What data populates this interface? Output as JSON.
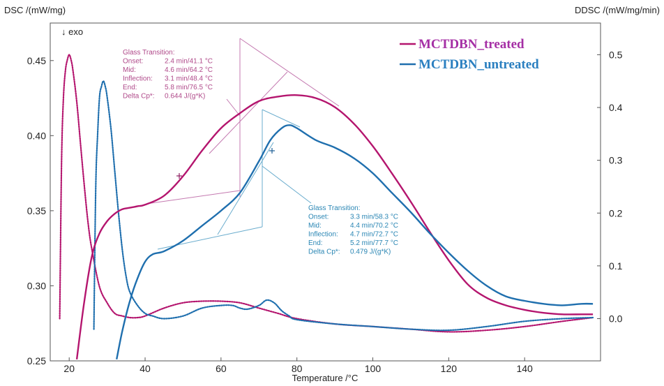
{
  "chart_data": {
    "type": "line",
    "xlabel": "Temperature /°C",
    "ylabel_left": "DSC /(mW/mg)",
    "ylabel_right": "DDSC /(mW/mg/min)",
    "exo_label": "↓ exo",
    "xlim": [
      15,
      160
    ],
    "ylim_left": [
      0.25,
      0.475
    ],
    "ylim_right": [
      -0.08,
      0.56
    ],
    "x_ticks": [
      "20",
      "40",
      "60",
      "80",
      "100",
      "120",
      "140"
    ],
    "y_ticks_left": [
      "0.25",
      "0.30",
      "0.35",
      "0.40",
      "0.45"
    ],
    "y_ticks_right": [
      "0.0",
      "0.1",
      "0.2",
      "0.3",
      "0.4",
      "0.5"
    ],
    "legend": {
      "placement": "top-right",
      "items": [
        {
          "name": "MCTDBN_treated",
          "color": "#b4156e",
          "text_color": "#a52fa5"
        },
        {
          "name": "MCTDBN_untreated",
          "color": "#1f6fae",
          "text_color": "#2a7fc0"
        }
      ]
    },
    "series": [
      {
        "name": "MCTDBN_treated",
        "kind": "DSC",
        "axis": "left",
        "color": "#b4156e",
        "x": [
          22,
          24,
          26,
          28,
          30,
          32,
          34,
          36,
          38,
          40,
          45,
          50,
          55,
          60,
          65,
          70,
          75,
          80,
          85,
          90,
          95,
          100,
          105,
          110,
          115,
          120,
          125,
          130,
          135,
          140,
          145,
          150,
          155,
          158
        ],
        "y": [
          0.251,
          0.29,
          0.32,
          0.335,
          0.343,
          0.348,
          0.351,
          0.352,
          0.353,
          0.354,
          0.36,
          0.373,
          0.39,
          0.405,
          0.415,
          0.423,
          0.426,
          0.427,
          0.425,
          0.419,
          0.408,
          0.393,
          0.375,
          0.356,
          0.336,
          0.317,
          0.301,
          0.292,
          0.287,
          0.284,
          0.282,
          0.281,
          0.281,
          0.281
        ]
      },
      {
        "name": "MCTDBN_untreated",
        "kind": "DSC",
        "axis": "left",
        "color": "#1f6fae",
        "x": [
          32.5,
          34,
          36,
          38,
          40,
          42,
          45,
          50,
          55,
          60,
          65,
          70,
          73,
          76,
          78,
          80,
          85,
          90,
          95,
          100,
          105,
          110,
          115,
          120,
          125,
          130,
          135,
          140,
          145,
          150,
          155,
          158
        ],
        "y": [
          0.251,
          0.27,
          0.29,
          0.305,
          0.316,
          0.321,
          0.323,
          0.33,
          0.34,
          0.35,
          0.362,
          0.383,
          0.397,
          0.405,
          0.407,
          0.405,
          0.397,
          0.392,
          0.385,
          0.375,
          0.362,
          0.349,
          0.335,
          0.322,
          0.31,
          0.3,
          0.293,
          0.29,
          0.288,
          0.287,
          0.288,
          0.288
        ]
      },
      {
        "name": "MCTDBN_treated",
        "kind": "DDSC",
        "axis": "right",
        "color": "#b4156e",
        "dotted": true,
        "x": [
          17.5,
          18,
          18.5,
          19,
          19.5,
          20,
          20.5,
          21,
          22,
          23,
          24,
          25,
          26,
          28,
          30,
          32,
          34,
          36,
          38,
          40,
          45,
          50,
          55,
          60,
          65,
          70,
          75,
          80,
          90,
          100,
          110,
          120,
          130,
          140,
          150,
          158
        ],
        "y": [
          0.0,
          0.3,
          0.42,
          0.47,
          0.49,
          0.5,
          0.49,
          0.47,
          0.41,
          0.33,
          0.25,
          0.18,
          0.13,
          0.06,
          0.03,
          0.01,
          0.005,
          0.002,
          0.002,
          0.005,
          0.02,
          0.03,
          0.033,
          0.033,
          0.03,
          0.02,
          0.01,
          0.0,
          -0.01,
          -0.015,
          -0.02,
          -0.025,
          -0.022,
          -0.015,
          -0.005,
          0.002
        ]
      },
      {
        "name": "MCTDBN_untreated",
        "kind": "DDSC",
        "axis": "right",
        "color": "#1f6fae",
        "dotted": true,
        "x": [
          26.5,
          27,
          27.5,
          28,
          28.5,
          29,
          29.5,
          30,
          31,
          32,
          33,
          34,
          35,
          36,
          38,
          40,
          42,
          45,
          50,
          55,
          60,
          63,
          65,
          67,
          70,
          72,
          74,
          76,
          78,
          80,
          90,
          100,
          110,
          120,
          130,
          140,
          150,
          158
        ],
        "y": [
          -0.02,
          0.25,
          0.35,
          0.42,
          0.44,
          0.45,
          0.44,
          0.42,
          0.36,
          0.28,
          0.2,
          0.13,
          0.08,
          0.05,
          0.025,
          0.01,
          0.005,
          0.0,
          0.005,
          0.02,
          0.025,
          0.025,
          0.02,
          0.018,
          0.025,
          0.035,
          0.03,
          0.015,
          0.005,
          -0.002,
          -0.01,
          -0.015,
          -0.02,
          -0.022,
          -0.015,
          -0.005,
          0.0,
          0.002
        ]
      }
    ],
    "annotations": [
      {
        "title": "Glass Transition:",
        "color": "#b04a8a",
        "rows": [
          {
            "label": "Onset:",
            "value": "2.4 min/41.1 °C"
          },
          {
            "label": "Mid:",
            "value": "4.6 min/64.2 °C"
          },
          {
            "label": "Inflection:",
            "value": "3.1 min/48.4 °C"
          },
          {
            "label": "End:",
            "value": "5.8 min/76.5 °C"
          },
          {
            "label": "Delta Cp*:",
            "value": "0.644 J/(g*K)"
          }
        ]
      },
      {
        "title": "Glass Transition:",
        "color": "#2a86b4",
        "rows": [
          {
            "label": "Onset:",
            "value": "3.3 min/58.3 °C"
          },
          {
            "label": "Mid:",
            "value": "4.4 min/70.2 °C"
          },
          {
            "label": "Inflection:",
            "value": "4.7 min/72.7 °C"
          },
          {
            "label": "End:",
            "value": "5.2 min/77.7 °C"
          },
          {
            "label": "Delta Cp*:",
            "value": "0.479 J/(g*K)"
          }
        ]
      }
    ]
  }
}
